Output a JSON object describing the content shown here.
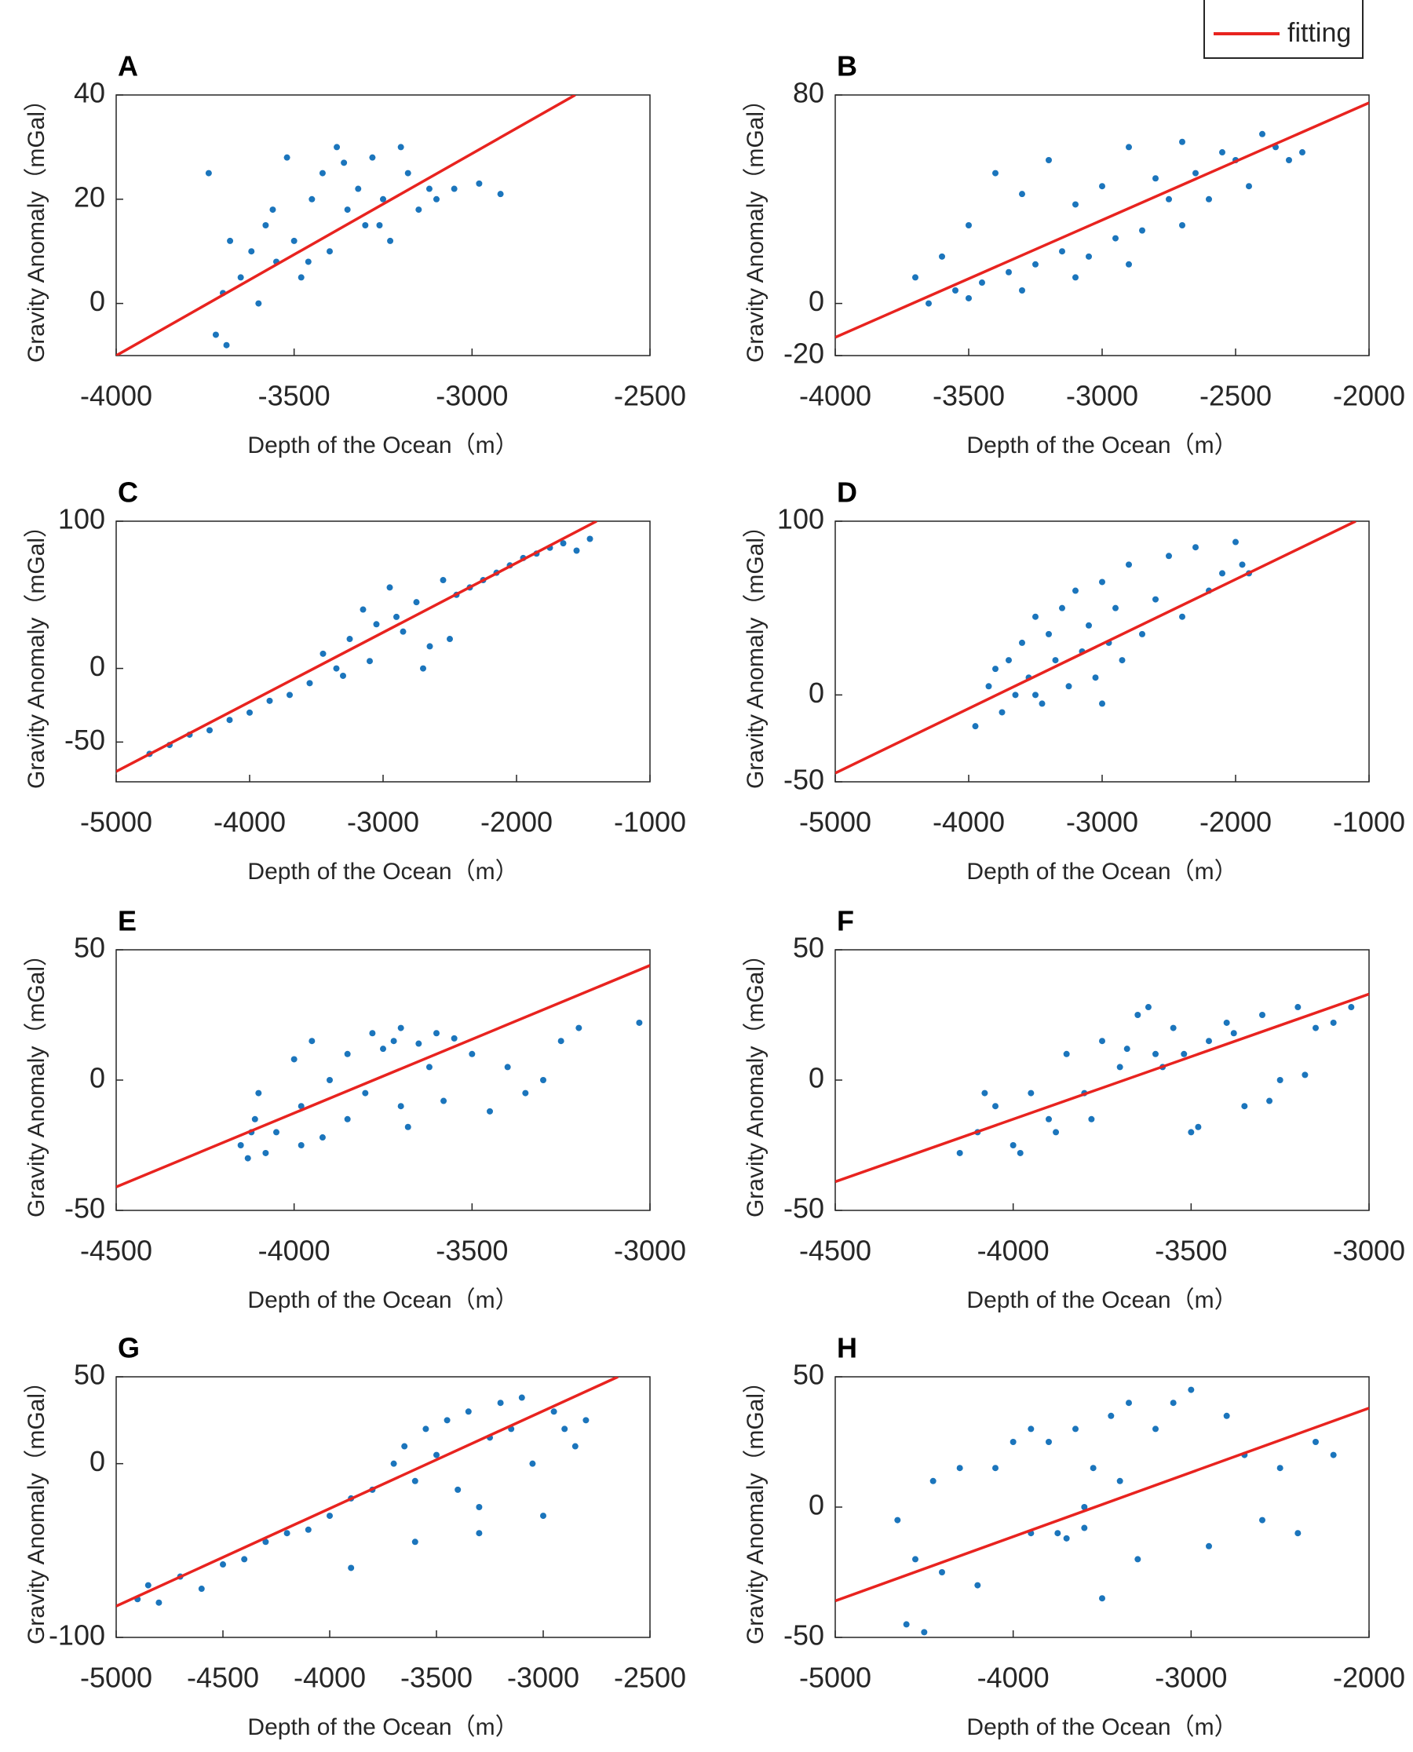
{
  "legend": {
    "name": "fitting",
    "color": "#e8231f"
  },
  "chart_data": [
    {
      "type": "scatter",
      "title": "A",
      "xlabel": "Depth of the Ocean（m）",
      "ylabel": "Gravity Anomaly（mGal）",
      "xlim": [
        -4000,
        -2500
      ],
      "xticks": [
        -4000,
        -3500,
        -3000,
        -2500
      ],
      "ylim": [
        -10,
        40
      ],
      "yticks": [
        0,
        20,
        40
      ],
      "series": [
        {
          "color": "#1b75bc",
          "x": [
            -3720,
            -3700,
            -3690,
            -3650,
            -3620,
            -3600,
            -3580,
            -3550,
            -3520,
            -3500,
            -3480,
            -3450,
            -3420,
            -3400,
            -3380,
            -3350,
            -3320,
            -3300,
            -3280,
            -3250,
            -3230,
            -3200,
            -3180,
            -3150,
            -3120,
            -3100,
            -3050,
            -2980,
            -2920,
            -3740,
            -3680,
            -3560,
            -3460,
            -3360,
            -3260
          ],
          "values": [
            -6,
            2,
            -8,
            5,
            10,
            0,
            15,
            8,
            28,
            12,
            5,
            20,
            25,
            10,
            30,
            18,
            22,
            15,
            28,
            20,
            12,
            30,
            25,
            18,
            22,
            20,
            22,
            23,
            21,
            25,
            12,
            18,
            8,
            27,
            15
          ]
        },
        {
          "kind": "line",
          "color": "#e8231f",
          "x": [
            -4000,
            -2710
          ],
          "values": [
            -10,
            40
          ]
        }
      ]
    },
    {
      "type": "scatter",
      "title": "B",
      "xlabel": "Depth of the Ocean（m）",
      "ylabel": "Gravity Anomaly（mGal）",
      "xlim": [
        -4000,
        -2000
      ],
      "xticks": [
        -4000,
        -3500,
        -3000,
        -2500,
        -2000
      ],
      "ylim": [
        -20,
        80
      ],
      "yticks": [
        -20,
        0,
        80
      ],
      "series": [
        {
          "color": "#1b75bc",
          "x": [
            -3700,
            -3650,
            -3600,
            -3550,
            -3500,
            -3450,
            -3400,
            -3350,
            -3300,
            -3250,
            -3200,
            -3150,
            -3100,
            -3050,
            -3000,
            -2950,
            -2900,
            -2850,
            -2800,
            -2750,
            -2700,
            -2650,
            -2600,
            -2550,
            -2500,
            -2450,
            -2400,
            -2350,
            -2300,
            -2250,
            -3500,
            -3300,
            -3100,
            -2900,
            -2700
          ],
          "values": [
            10,
            0,
            18,
            5,
            30,
            8,
            50,
            12,
            42,
            15,
            55,
            20,
            38,
            18,
            45,
            25,
            60,
            28,
            48,
            40,
            62,
            50,
            40,
            58,
            55,
            45,
            65,
            60,
            55,
            58,
            2,
            5,
            10,
            15,
            30
          ]
        },
        {
          "kind": "line",
          "color": "#e8231f",
          "x": [
            -4000,
            -2000
          ],
          "values": [
            -13,
            77
          ]
        }
      ]
    },
    {
      "type": "scatter",
      "title": "C",
      "xlabel": "Depth of the Ocean（m）",
      "ylabel": "Gravity Anomaly（mGal）",
      "xlim": [
        -5000,
        -1000
      ],
      "xticks": [
        -5000,
        -4000,
        -3000,
        -2000,
        -1000
      ],
      "ylim": [
        -77,
        100
      ],
      "yticks": [
        -50,
        0,
        100
      ],
      "series": [
        {
          "color": "#1b75bc",
          "x": [
            -4750,
            -4600,
            -4450,
            -4300,
            -4150,
            -4000,
            -3850,
            -3700,
            -3550,
            -3450,
            -3350,
            -3250,
            -3150,
            -3050,
            -2950,
            -2850,
            -2750,
            -2650,
            -2550,
            -2450,
            -2350,
            -2250,
            -2150,
            -2050,
            -1950,
            -1850,
            -1750,
            -1650,
            -1550,
            -1450,
            -3300,
            -3100,
            -2900,
            -2700,
            -2500
          ],
          "values": [
            -58,
            -52,
            -45,
            -42,
            -35,
            -30,
            -22,
            -18,
            -10,
            10,
            0,
            20,
            40,
            30,
            55,
            25,
            45,
            15,
            60,
            50,
            55,
            60,
            65,
            70,
            75,
            78,
            82,
            85,
            80,
            88,
            -5,
            5,
            35,
            0,
            20
          ]
        },
        {
          "kind": "line",
          "color": "#e8231f",
          "x": [
            -5000,
            -1400
          ],
          "values": [
            -70,
            100
          ]
        }
      ]
    },
    {
      "type": "scatter",
      "title": "D",
      "xlabel": "Depth of the Ocean（m）",
      "ylabel": "Gravity Anomaly（mGal）",
      "xlim": [
        -5000,
        -1000
      ],
      "xticks": [
        -5000,
        -4000,
        -3000,
        -2000,
        -1000
      ],
      "ylim": [
        -50,
        100
      ],
      "yticks": [
        -50,
        0,
        100
      ],
      "series": [
        {
          "color": "#1b75bc",
          "x": [
            -3950,
            -3850,
            -3800,
            -3750,
            -3700,
            -3650,
            -3600,
            -3550,
            -3500,
            -3450,
            -3400,
            -3350,
            -3300,
            -3250,
            -3200,
            -3150,
            -3100,
            -3050,
            -3000,
            -2950,
            -2900,
            -2850,
            -2800,
            -2700,
            -2600,
            -2500,
            -2400,
            -2300,
            -2200,
            -2100,
            -2000,
            -1950,
            -1900,
            -3500,
            -3000
          ],
          "values": [
            -18,
            5,
            15,
            -10,
            20,
            0,
            30,
            10,
            45,
            -5,
            35,
            20,
            50,
            5,
            60,
            25,
            40,
            10,
            65,
            30,
            50,
            20,
            75,
            35,
            55,
            80,
            45,
            85,
            60,
            70,
            88,
            75,
            70,
            0,
            -5
          ]
        },
        {
          "kind": "line",
          "color": "#e8231f",
          "x": [
            -5000,
            -1100
          ],
          "values": [
            -45,
            100
          ]
        }
      ]
    },
    {
      "type": "scatter",
      "title": "E",
      "xlabel": "Depth of the Ocean（m）",
      "ylabel": "Gravity Anomaly（mGal）",
      "xlim": [
        -4500,
        -3000
      ],
      "xticks": [
        -4500,
        -4000,
        -3500,
        -3000
      ],
      "ylim": [
        -50,
        50
      ],
      "yticks": [
        -50,
        0,
        50
      ],
      "series": [
        {
          "color": "#1b75bc",
          "x": [
            -4150,
            -4130,
            -4110,
            -4100,
            -4080,
            -4050,
            -4000,
            -3980,
            -3950,
            -3920,
            -3900,
            -3850,
            -3800,
            -3780,
            -3750,
            -3720,
            -3700,
            -3680,
            -3650,
            -3620,
            -3600,
            -3580,
            -3550,
            -3500,
            -3450,
            -3400,
            -3350,
            -3300,
            -3250,
            -3200,
            -3030,
            -4120,
            -3980,
            -3850,
            -3700
          ],
          "values": [
            -25,
            -30,
            -15,
            -5,
            -28,
            -20,
            8,
            -10,
            15,
            -22,
            0,
            10,
            -5,
            18,
            12,
            15,
            20,
            -18,
            14,
            5,
            18,
            -8,
            16,
            10,
            -12,
            5,
            -5,
            0,
            15,
            20,
            22,
            -20,
            -25,
            -15,
            -10
          ]
        },
        {
          "kind": "line",
          "color": "#e8231f",
          "x": [
            -4500,
            -3000
          ],
          "values": [
            -41,
            44
          ]
        }
      ]
    },
    {
      "type": "scatter",
      "title": "F",
      "xlabel": "Depth of the Ocean（m）",
      "ylabel": "Gravity Anomaly（mGal）",
      "xlim": [
        -4500,
        -3000
      ],
      "xticks": [
        -4500,
        -4000,
        -3500,
        -3000
      ],
      "ylim": [
        -50,
        50
      ],
      "yticks": [
        -50,
        0,
        50
      ],
      "series": [
        {
          "color": "#1b75bc",
          "x": [
            -4150,
            -4100,
            -4050,
            -4000,
            -3950,
            -3900,
            -3850,
            -3800,
            -3750,
            -3700,
            -3650,
            -3600,
            -3550,
            -3500,
            -3450,
            -3400,
            -3350,
            -3300,
            -3250,
            -3200,
            -3150,
            -3100,
            -3050,
            -4080,
            -3980,
            -3880,
            -3780,
            -3680,
            -3580,
            -3480,
            -3380,
            -3280,
            -3180,
            -3620,
            -3520
          ],
          "values": [
            -28,
            -20,
            -10,
            -25,
            -5,
            -15,
            10,
            -5,
            15,
            5,
            25,
            10,
            20,
            -20,
            15,
            22,
            -10,
            25,
            0,
            28,
            20,
            22,
            28,
            -5,
            -28,
            -20,
            -15,
            12,
            5,
            -18,
            18,
            -8,
            2,
            28,
            10
          ]
        },
        {
          "kind": "line",
          "color": "#e8231f",
          "x": [
            -4500,
            -3000
          ],
          "values": [
            -39,
            33
          ]
        }
      ]
    },
    {
      "type": "scatter",
      "title": "G",
      "xlabel": "Depth of the Ocean（m）",
      "ylabel": "Gravity Anomaly（mGal）",
      "xlim": [
        -5000,
        -2500
      ],
      "xticks": [
        -5000,
        -4500,
        -4000,
        -3500,
        -3000,
        -2500
      ],
      "ylim": [
        -100,
        50
      ],
      "yticks": [
        -100,
        0,
        50
      ],
      "series": [
        {
          "color": "#1b75bc",
          "x": [
            -4900,
            -4850,
            -4800,
            -4700,
            -4600,
            -4500,
            -4400,
            -4300,
            -4200,
            -4100,
            -4000,
            -3900,
            -3800,
            -3700,
            -3650,
            -3600,
            -3550,
            -3500,
            -3450,
            -3400,
            -3350,
            -3300,
            -3250,
            -3200,
            -3150,
            -3100,
            -3050,
            -3000,
            -2950,
            -2900,
            -2850,
            -2800,
            -3900,
            -3600,
            -3300
          ],
          "values": [
            -78,
            -70,
            -80,
            -65,
            -72,
            -58,
            -55,
            -45,
            -40,
            -38,
            -30,
            -20,
            -15,
            0,
            10,
            -10,
            20,
            5,
            25,
            -15,
            30,
            -25,
            15,
            35,
            20,
            38,
            0,
            -30,
            30,
            20,
            10,
            25,
            -60,
            -45,
            -40
          ]
        },
        {
          "kind": "line",
          "color": "#e8231f",
          "x": [
            -5000,
            -2650
          ],
          "values": [
            -82,
            50
          ]
        }
      ]
    },
    {
      "type": "scatter",
      "title": "H",
      "xlabel": "Depth of the Ocean（m）",
      "ylabel": "Gravity Anomaly（mGal）",
      "xlim": [
        -5000,
        -2000
      ],
      "xticks": [
        -5000,
        -4000,
        -3000,
        -2000
      ],
      "ylim": [
        -50,
        50
      ],
      "yticks": [
        -50,
        0,
        50
      ],
      "series": [
        {
          "color": "#1b75bc",
          "x": [
            -4650,
            -4600,
            -4550,
            -4500,
            -4450,
            -4400,
            -4300,
            -4200,
            -4100,
            -4000,
            -3900,
            -3800,
            -3750,
            -3700,
            -3650,
            -3600,
            -3550,
            -3500,
            -3450,
            -3400,
            -3350,
            -3300,
            -3200,
            -3100,
            -3000,
            -2900,
            -2800,
            -2700,
            -2600,
            -2500,
            -2400,
            -2300,
            -2200,
            -3900,
            -3600
          ],
          "values": [
            -5,
            -45,
            -20,
            -48,
            10,
            -25,
            15,
            -30,
            15,
            25,
            30,
            25,
            -10,
            -12,
            30,
            0,
            15,
            -35,
            35,
            10,
            40,
            -20,
            30,
            40,
            45,
            -15,
            35,
            20,
            -5,
            15,
            -10,
            25,
            20,
            -10,
            -8
          ]
        },
        {
          "kind": "line",
          "color": "#e8231f",
          "x": [
            -5000,
            -2000
          ],
          "values": [
            -36,
            38
          ]
        }
      ]
    }
  ]
}
